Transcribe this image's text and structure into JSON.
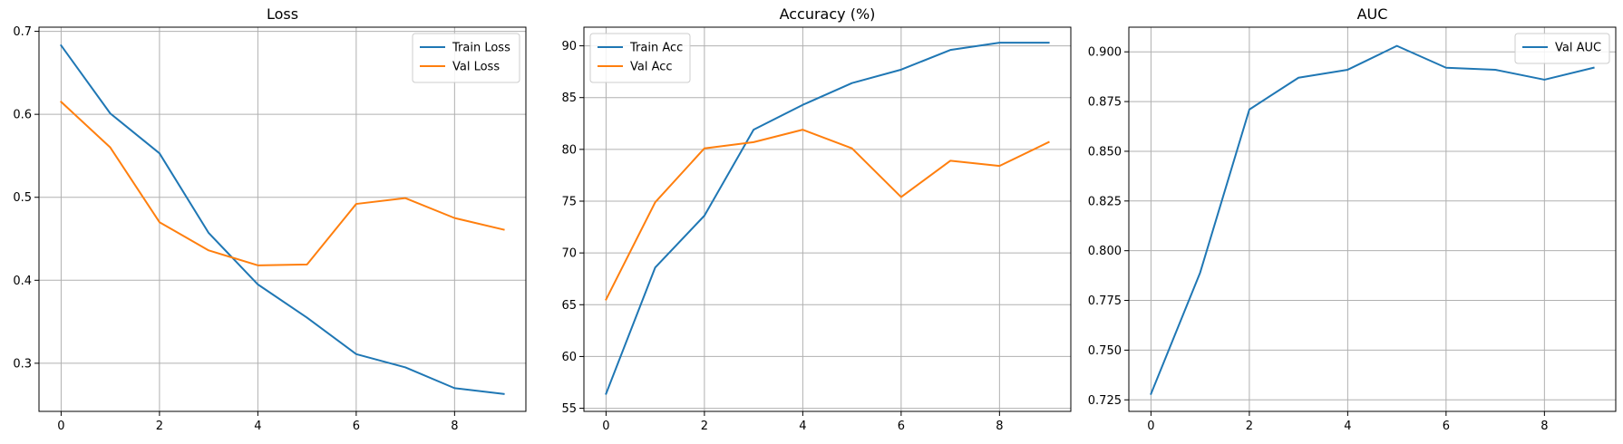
{
  "chart_data": [
    {
      "type": "line",
      "title": "Loss",
      "xlabel": "",
      "ylabel": "",
      "xlim": [
        -0.45,
        9.45
      ],
      "ylim": [
        0.242,
        0.705
      ],
      "xticks": [
        0,
        2,
        4,
        6,
        8
      ],
      "yticks": [
        0.3,
        0.4,
        0.5,
        0.6,
        0.7
      ],
      "tick_decimals": 1,
      "grid": true,
      "legend": "upper right",
      "series": [
        {
          "name": "Train Loss",
          "color": "#1f77b4",
          "x": [
            0,
            1,
            2,
            3,
            4,
            5,
            6,
            7,
            8,
            9
          ],
          "y": [
            0.683,
            0.601,
            0.553,
            0.457,
            0.395,
            0.355,
            0.311,
            0.295,
            0.27,
            0.263
          ]
        },
        {
          "name": "Val Loss",
          "color": "#ff7f0e",
          "x": [
            0,
            1,
            2,
            3,
            4,
            5,
            6,
            7,
            8,
            9
          ],
          "y": [
            0.615,
            0.56,
            0.47,
            0.436,
            0.418,
            0.419,
            0.492,
            0.499,
            0.475,
            0.461
          ]
        }
      ]
    },
    {
      "type": "line",
      "title": "Accuracy (%)",
      "xlabel": "",
      "ylabel": "",
      "xlim": [
        -0.45,
        9.45
      ],
      "ylim": [
        54.7,
        91.8
      ],
      "xticks": [
        0,
        2,
        4,
        6,
        8
      ],
      "yticks": [
        55,
        60,
        65,
        70,
        75,
        80,
        85,
        90
      ],
      "tick_decimals": 0,
      "grid": true,
      "legend": "upper left",
      "series": [
        {
          "name": "Train Acc",
          "color": "#1f77b4",
          "x": [
            0,
            1,
            2,
            3,
            4,
            5,
            6,
            7,
            8,
            9
          ],
          "y": [
            56.4,
            68.6,
            73.6,
            81.9,
            84.3,
            86.4,
            87.7,
            89.6,
            90.3,
            90.3
          ]
        },
        {
          "name": "Val Acc",
          "color": "#ff7f0e",
          "x": [
            0,
            1,
            2,
            3,
            4,
            5,
            6,
            7,
            8,
            9
          ],
          "y": [
            65.5,
            74.9,
            80.1,
            80.7,
            81.9,
            80.1,
            75.4,
            78.9,
            78.4,
            80.7
          ]
        }
      ]
    },
    {
      "type": "line",
      "title": "AUC",
      "xlabel": "",
      "ylabel": "",
      "xlim": [
        -0.45,
        9.45
      ],
      "ylim": [
        0.7192,
        0.9124
      ],
      "xticks": [
        0,
        2,
        4,
        6,
        8
      ],
      "yticks": [
        0.725,
        0.75,
        0.775,
        0.8,
        0.825,
        0.85,
        0.875,
        0.9
      ],
      "tick_decimals": 3,
      "grid": true,
      "legend": "upper right",
      "series": [
        {
          "name": "Val AUC",
          "color": "#1f77b4",
          "x": [
            0,
            1,
            2,
            3,
            4,
            5,
            6,
            7,
            8,
            9
          ],
          "y": [
            0.728,
            0.789,
            0.871,
            0.887,
            0.891,
            0.903,
            0.892,
            0.891,
            0.886,
            0.892
          ]
        }
      ]
    }
  ]
}
